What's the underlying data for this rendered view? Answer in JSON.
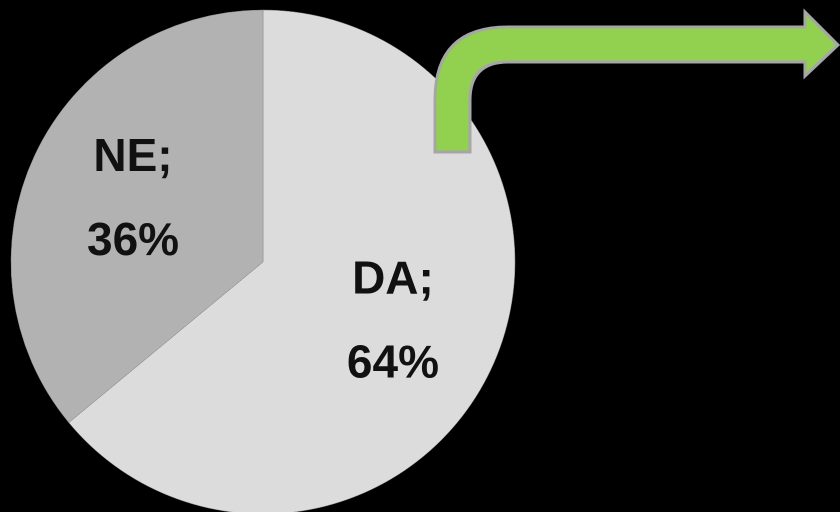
{
  "chart_data": {
    "type": "pie",
    "categories": [
      "DA;",
      "NE;"
    ],
    "values": [
      64,
      36
    ],
    "value_labels": [
      "64%",
      "36%"
    ],
    "colors": [
      "#dcdcdc",
      "#b2b2b2"
    ]
  }
}
